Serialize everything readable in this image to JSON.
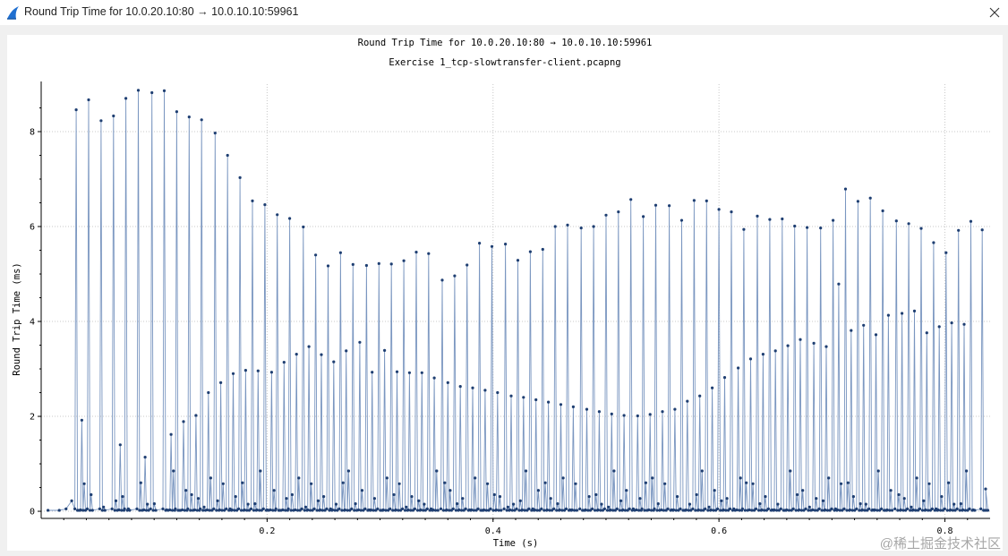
{
  "window": {
    "title": "Round Trip Time for 10.0.20.10:80 → 10.0.10.10:59961",
    "close_icon": "close-icon",
    "app_icon": "wireshark-fin-icon"
  },
  "watermark": "@稀土掘金技术社区",
  "colors": {
    "series_line": "#7a96c0",
    "series_point": "#1f3f72",
    "grid": "#c8c8c8",
    "icon_blue": "#1f6fd0"
  },
  "chart_data": {
    "type": "scatter",
    "title": "Round Trip Time for 10.0.20.10:80 → 10.0.10.10:59961",
    "subtitle": "Exercise 1_tcp-slowtransfer-client.pcapng",
    "xlabel": "Time (s)",
    "ylabel": "Round Trip Time (ms)",
    "xlim": [
      0.0,
      0.84
    ],
    "ylim": [
      -0.15,
      9.0
    ],
    "xticks": [
      0.2,
      0.4,
      0.6,
      0.8
    ],
    "yticks": [
      0,
      2,
      4,
      6,
      8
    ],
    "xtick_labels": [
      "0.2",
      "0.4",
      "0.6",
      "0.8"
    ],
    "ytick_labels": [
      "0",
      "2",
      "4",
      "6",
      "8"
    ],
    "grid": true,
    "connected": true,
    "peaks": [
      [
        0.031,
        8.46
      ],
      [
        0.042,
        8.67
      ],
      [
        0.053,
        8.23
      ],
      [
        0.064,
        8.33
      ],
      [
        0.075,
        8.7
      ],
      [
        0.086,
        8.87
      ],
      [
        0.098,
        8.82
      ],
      [
        0.109,
        8.86
      ],
      [
        0.12,
        8.42
      ],
      [
        0.131,
        8.31
      ],
      [
        0.142,
        8.25
      ],
      [
        0.154,
        7.97
      ],
      [
        0.165,
        7.5
      ],
      [
        0.176,
        7.03
      ],
      [
        0.187,
        6.54
      ],
      [
        0.198,
        6.46
      ],
      [
        0.209,
        6.25
      ],
      [
        0.22,
        6.17
      ],
      [
        0.232,
        5.99
      ],
      [
        0.243,
        5.4
      ],
      [
        0.254,
        5.17
      ],
      [
        0.265,
        5.45
      ],
      [
        0.276,
        5.2
      ],
      [
        0.288,
        5.18
      ],
      [
        0.299,
        5.22
      ],
      [
        0.31,
        5.21
      ],
      [
        0.321,
        5.28
      ],
      [
        0.332,
        5.46
      ],
      [
        0.343,
        5.43
      ],
      [
        0.355,
        4.87
      ],
      [
        0.366,
        4.96
      ],
      [
        0.377,
        5.19
      ],
      [
        0.388,
        5.65
      ],
      [
        0.399,
        5.58
      ],
      [
        0.411,
        5.63
      ],
      [
        0.422,
        5.29
      ],
      [
        0.433,
        5.47
      ],
      [
        0.444,
        5.52
      ],
      [
        0.455,
        6.0
      ],
      [
        0.466,
        6.03
      ],
      [
        0.478,
        5.97
      ],
      [
        0.489,
        6.0
      ],
      [
        0.5,
        6.24
      ],
      [
        0.511,
        6.31
      ],
      [
        0.522,
        6.57
      ],
      [
        0.533,
        6.21
      ],
      [
        0.544,
        6.45
      ],
      [
        0.556,
        6.44
      ],
      [
        0.567,
        6.13
      ],
      [
        0.578,
        6.55
      ],
      [
        0.589,
        6.54
      ],
      [
        0.6,
        6.36
      ],
      [
        0.611,
        6.31
      ],
      [
        0.622,
        5.94
      ],
      [
        0.634,
        6.22
      ],
      [
        0.645,
        6.15
      ],
      [
        0.656,
        6.16
      ],
      [
        0.667,
        6.01
      ],
      [
        0.678,
        5.98
      ],
      [
        0.69,
        5.97
      ],
      [
        0.701,
        6.13
      ],
      [
        0.712,
        6.79
      ],
      [
        0.723,
        6.53
      ],
      [
        0.734,
        6.6
      ],
      [
        0.745,
        6.33
      ],
      [
        0.757,
        6.12
      ],
      [
        0.768,
        6.06
      ],
      [
        0.779,
        5.96
      ],
      [
        0.79,
        5.66
      ],
      [
        0.801,
        5.45
      ],
      [
        0.812,
        5.92
      ],
      [
        0.823,
        6.11
      ],
      [
        0.833,
        5.93
      ]
    ],
    "secondary": [
      [
        0.036,
        1.92
      ],
      [
        0.07,
        1.4
      ],
      [
        0.092,
        1.14
      ],
      [
        0.115,
        1.62
      ],
      [
        0.126,
        1.89
      ],
      [
        0.137,
        2.02
      ],
      [
        0.148,
        2.5
      ],
      [
        0.159,
        2.71
      ],
      [
        0.17,
        2.9
      ],
      [
        0.181,
        2.97
      ],
      [
        0.192,
        2.96
      ],
      [
        0.204,
        2.93
      ],
      [
        0.215,
        3.14
      ],
      [
        0.226,
        3.31
      ],
      [
        0.237,
        3.47
      ],
      [
        0.248,
        3.3
      ],
      [
        0.259,
        3.15
      ],
      [
        0.27,
        3.38
      ],
      [
        0.282,
        3.56
      ],
      [
        0.293,
        2.93
      ],
      [
        0.304,
        3.39
      ],
      [
        0.315,
        2.94
      ],
      [
        0.326,
        2.92
      ],
      [
        0.337,
        2.92
      ],
      [
        0.348,
        2.81
      ],
      [
        0.36,
        2.71
      ],
      [
        0.371,
        2.63
      ],
      [
        0.382,
        2.6
      ],
      [
        0.393,
        2.55
      ],
      [
        0.404,
        2.5
      ],
      [
        0.416,
        2.43
      ],
      [
        0.427,
        2.4
      ],
      [
        0.438,
        2.35
      ],
      [
        0.449,
        2.3
      ],
      [
        0.46,
        2.25
      ],
      [
        0.471,
        2.2
      ],
      [
        0.483,
        2.15
      ],
      [
        0.494,
        2.1
      ],
      [
        0.505,
        2.05
      ],
      [
        0.516,
        2.02
      ],
      [
        0.528,
        2.01
      ],
      [
        0.539,
        2.04
      ],
      [
        0.55,
        2.1
      ],
      [
        0.561,
        2.15
      ],
      [
        0.572,
        2.32
      ],
      [
        0.583,
        2.43
      ],
      [
        0.594,
        2.6
      ],
      [
        0.605,
        2.82
      ],
      [
        0.617,
        3.02
      ],
      [
        0.628,
        3.21
      ],
      [
        0.639,
        3.31
      ],
      [
        0.65,
        3.38
      ],
      [
        0.661,
        3.49
      ],
      [
        0.672,
        3.62
      ],
      [
        0.684,
        3.54
      ],
      [
        0.695,
        3.47
      ],
      [
        0.706,
        4.79
      ],
      [
        0.717,
        3.81
      ],
      [
        0.728,
        3.92
      ],
      [
        0.739,
        3.72
      ],
      [
        0.75,
        4.13
      ],
      [
        0.762,
        4.17
      ],
      [
        0.773,
        4.22
      ],
      [
        0.784,
        3.76
      ],
      [
        0.795,
        3.89
      ],
      [
        0.806,
        3.97
      ],
      [
        0.817,
        3.94
      ]
    ],
    "baseline_start": [
      [
        0.006,
        0.02
      ],
      [
        0.016,
        0.02
      ],
      [
        0.022,
        0.05
      ],
      [
        0.027,
        0.22
      ]
    ]
  }
}
